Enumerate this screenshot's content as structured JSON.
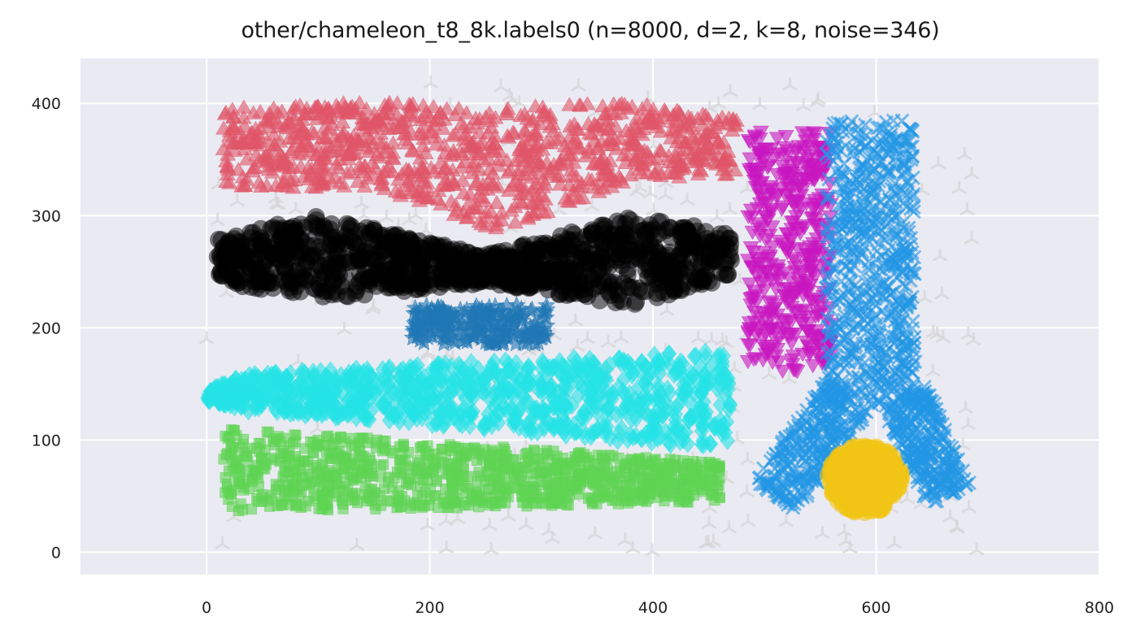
{
  "chart_data": {
    "type": "scatter",
    "title": "other/chameleon_t8_8k.labels0 (n=8000, d=2, k=8, noise=346)",
    "xlabel": "",
    "ylabel": "",
    "xlim": [
      -113,
      800
    ],
    "ylim": [
      -20,
      440
    ],
    "grid": true,
    "background": "#eaeaf2",
    "x_ticks": [
      0,
      200,
      400,
      600,
      800
    ],
    "y_ticks": [
      0,
      100,
      200,
      300,
      400
    ],
    "clusters": [
      {
        "label": "noise",
        "marker": "tri",
        "color": "#d5d5d8",
        "region": {
          "kind": "box",
          "x": [
            0,
            690
          ],
          "y": [
            0,
            420
          ]
        }
      },
      {
        "label": "0",
        "marker": "triangle-up",
        "color": "#e05568",
        "region": {
          "kind": "profile",
          "x": [
            15,
            475
          ],
          "profile": [
            [
              15,
              320,
              395
            ],
            [
              150,
              325,
              400
            ],
            [
              260,
              285,
              395
            ],
            [
              380,
              330,
              400
            ],
            [
              475,
              335,
              385
            ]
          ]
        }
      },
      {
        "label": "1",
        "marker": "circle",
        "color": "#000000",
        "region": {
          "kind": "profile",
          "x": [
            10,
            470
          ],
          "profile": [
            [
              10,
              240,
              280
            ],
            [
              100,
              225,
              300
            ],
            [
              250,
              240,
              265
            ],
            [
              380,
              220,
              300
            ],
            [
              470,
              245,
              285
            ]
          ]
        }
      },
      {
        "label": "2",
        "marker": "star",
        "color": "#1f77b4",
        "region": {
          "kind": "box",
          "x": [
            180,
            305
          ],
          "y": [
            185,
            220
          ]
        }
      },
      {
        "label": "3",
        "marker": "diamond",
        "color": "#25e3e6",
        "region": {
          "kind": "profile",
          "x": [
            0,
            470
          ],
          "profile": [
            [
              0,
              135,
              145
            ],
            [
              40,
              125,
              160
            ],
            [
              250,
              110,
              170
            ],
            [
              470,
              90,
              180
            ]
          ]
        }
      },
      {
        "label": "4",
        "marker": "square",
        "color": "#5fd353",
        "region": {
          "kind": "profile",
          "x": [
            15,
            460
          ],
          "profile": [
            [
              15,
              35,
              110
            ],
            [
              250,
              40,
              95
            ],
            [
              460,
              45,
              80
            ]
          ]
        }
      },
      {
        "label": "5",
        "marker": "triangle-down",
        "color": "#c816c0",
        "region": {
          "kind": "profile",
          "x": [
            485,
            560
          ],
          "profile": [
            [
              485,
              170,
              375
            ],
            [
              520,
              160,
              380
            ],
            [
              560,
              170,
              375
            ]
          ]
        }
      },
      {
        "label": "6",
        "marker": "x",
        "color": "#2196e4",
        "region": {
          "kind": "box",
          "x": [
            555,
            635
          ],
          "y": [
            130,
            385
          ]
        }
      },
      {
        "label": "6",
        "marker": "x",
        "color": "#2196e4",
        "region": {
          "kind": "band",
          "from": [
            575,
            140
          ],
          "to": [
            510,
            50
          ],
          "halfwidth": 24
        }
      },
      {
        "label": "6",
        "marker": "x",
        "color": "#2196e4",
        "region": {
          "kind": "band",
          "from": [
            625,
            140
          ],
          "to": [
            665,
            50
          ],
          "halfwidth": 22
        }
      },
      {
        "label": "7",
        "marker": "circle",
        "color": "#f2c515",
        "region": {
          "kind": "ellipse",
          "center": [
            590,
            65
          ],
          "radius": [
            33,
            30
          ]
        }
      }
    ]
  }
}
